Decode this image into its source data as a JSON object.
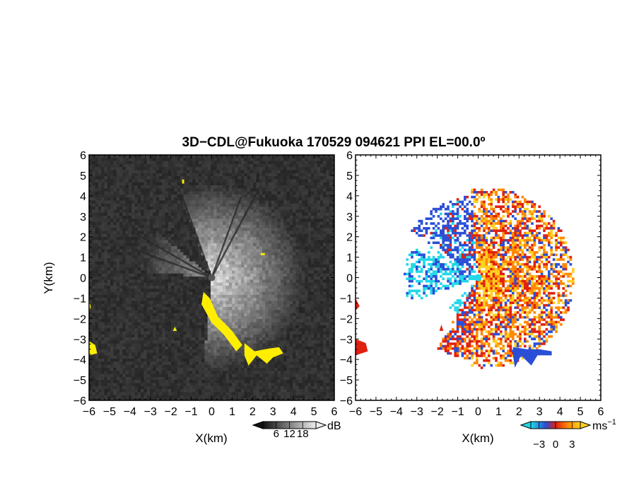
{
  "title": "3D−CDL@Fukuoka 170529 094621 PPI EL=00.0º",
  "chart_data": [
    {
      "type": "heatmap",
      "panel": "reflectivity",
      "xlabel": "X(km)",
      "ylabel": "Y(km)",
      "xlim": [
        -6,
        6
      ],
      "ylim": [
        -6,
        6
      ],
      "xticks": [
        "−6",
        "−5",
        "−4",
        "−3",
        "−2",
        "−1",
        "0",
        "1",
        "2",
        "3",
        "4",
        "5",
        "6"
      ],
      "yticks": [
        "6",
        "5",
        "4",
        "3",
        "2",
        "1",
        "0",
        "−1",
        "−2",
        "−3",
        "−4",
        "−5",
        "−6"
      ],
      "colorbar": {
        "unit": "dB",
        "ticks": [
          "6",
          "12",
          "18"
        ],
        "range": [
          0,
          24
        ],
        "colormap": "grayscale",
        "extend": "both"
      },
      "highlight_color": "#ffee00",
      "background_color": "#2e2e2e"
    },
    {
      "type": "heatmap",
      "panel": "doppler-velocity",
      "xlabel": "X(km)",
      "ylabel": "",
      "xlim": [
        -6,
        6
      ],
      "ylim": [
        -6,
        6
      ],
      "xticks": [
        "−6",
        "−5",
        "−4",
        "−3",
        "−2",
        "−1",
        "0",
        "1",
        "2",
        "3",
        "4",
        "5",
        "6"
      ],
      "yticks": [
        "6",
        "5",
        "4",
        "3",
        "2",
        "1",
        "0",
        "−1",
        "−2",
        "−3",
        "−4",
        "−5",
        "−6"
      ],
      "colorbar": {
        "unit": "ms",
        "unit_sup": "−1",
        "ticks": [
          "−3",
          "0",
          "3"
        ],
        "range": [
          -4.5,
          4.5
        ],
        "colormap": "cyan-blue-red-orange-yellow",
        "extend": "both"
      },
      "colors": {
        "cyan": "#22d8e8",
        "blue": "#2a4fd6",
        "red": "#e02010",
        "orange": "#ff8800",
        "yellow": "#ffd020"
      },
      "background_color": "#ffffff"
    }
  ]
}
